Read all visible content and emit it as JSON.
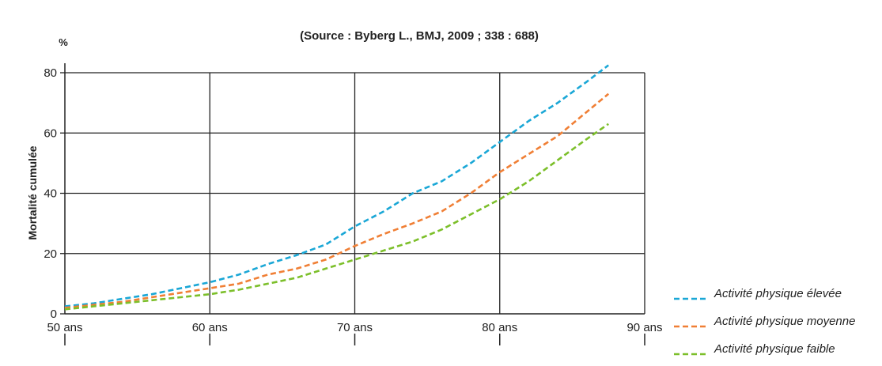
{
  "chart_data": {
    "type": "line",
    "title": "",
    "subtitle": "(Source : Byberg L., BMJ, 2009 ; 338 : 688)",
    "xlabel": "",
    "ylabel": "Mortalité cumulée",
    "y_unit": "%",
    "xlim": [
      50,
      90
    ],
    "ylim": [
      0,
      80
    ],
    "x_ticks": [
      50,
      60,
      70,
      80,
      90
    ],
    "x_tick_labels": [
      "50 ans",
      "60 ans",
      "70 ans",
      "80 ans",
      "90 ans"
    ],
    "y_ticks": [
      0,
      20,
      40,
      60,
      80
    ],
    "y_tick_labels": [
      "0",
      "20",
      "40",
      "60",
      "80"
    ],
    "grid": true,
    "legend_position": "bottom-right",
    "series": [
      {
        "name": "Activité physique élevée",
        "color": "#1aa7d6",
        "style": "dashed",
        "x": [
          50,
          52,
          54,
          56,
          58,
          60,
          62,
          64,
          66,
          68,
          70,
          72,
          74,
          76,
          78,
          80,
          82,
          84,
          86,
          87.5
        ],
        "y": [
          2.5,
          3.5,
          5,
          6.5,
          8.5,
          10.5,
          13,
          16.5,
          19.5,
          23,
          29,
          34,
          40,
          44,
          50,
          57,
          64,
          70,
          77,
          82.5
        ]
      },
      {
        "name": "Activité physique moyenne",
        "color": "#f07f35",
        "style": "dashed",
        "x": [
          50,
          52,
          54,
          56,
          58,
          60,
          62,
          64,
          66,
          68,
          70,
          72,
          74,
          76,
          78,
          80,
          82,
          84,
          86,
          87.5
        ],
        "y": [
          2,
          3,
          4,
          5.5,
          7,
          8.5,
          10,
          13,
          15,
          18,
          22.5,
          26.5,
          30,
          34,
          40,
          47,
          53,
          59,
          67,
          73
        ]
      },
      {
        "name": "Activité physique faible",
        "color": "#7cbf2a",
        "style": "dashed",
        "x": [
          50,
          52,
          54,
          56,
          58,
          60,
          62,
          64,
          66,
          68,
          70,
          72,
          74,
          76,
          78,
          80,
          82,
          84,
          86,
          87.5
        ],
        "y": [
          1.5,
          2.5,
          3.5,
          4.5,
          5.5,
          6.5,
          8,
          10,
          12,
          15,
          18,
          21,
          24,
          28,
          33,
          38,
          44,
          51,
          58,
          63
        ]
      }
    ]
  }
}
